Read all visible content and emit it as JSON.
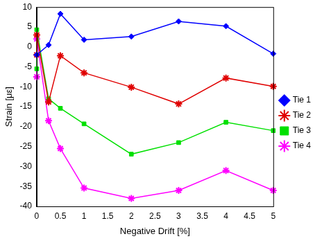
{
  "chart_data": {
    "type": "line",
    "x_label": "Negative Drift [%]",
    "y_label": "Strain [με]",
    "x": [
      0,
      0,
      0.25,
      0.5,
      1,
      2,
      3,
      4,
      5
    ],
    "series": [
      {
        "name": "Tie 1",
        "color": "#0000ff",
        "marker": "diamond",
        "values": [
          -2,
          -2,
          0.5,
          8.3,
          1.8,
          2.6,
          6.4,
          5.2,
          -1.7
        ]
      },
      {
        "name": "Tie 2",
        "color": "#e00000",
        "marker": "star",
        "values": [
          -2,
          3,
          -13.8,
          -2.2,
          -6.5,
          -10.1,
          -14.3,
          -7.8,
          -9.9
        ]
      },
      {
        "name": "Tie 3",
        "color": "#00e000",
        "marker": "square",
        "values": [
          -5.5,
          4.3,
          -13,
          -15.4,
          -19.3,
          -26.9,
          -24,
          -18.9,
          -21
        ]
      },
      {
        "name": "Tie 4",
        "color": "#ff00ff",
        "marker": "star",
        "values": [
          -7.5,
          2,
          -18.5,
          -25.5,
          -35.4,
          -38,
          -36,
          -31,
          -36
        ]
      }
    ],
    "xlim": [
      0,
      5
    ],
    "xticks": [
      0,
      0.5,
      1,
      1.5,
      2,
      2.5,
      3,
      3.5,
      4,
      4.5,
      5
    ],
    "ylim": [
      -40,
      10
    ],
    "yticks": [
      -40,
      -35,
      -30,
      -25,
      -20,
      -15,
      -10,
      -5,
      0,
      5,
      10
    ],
    "grid": false,
    "legend": "right"
  }
}
